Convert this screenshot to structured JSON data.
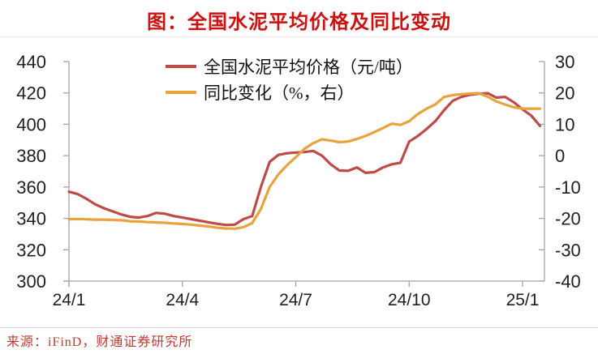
{
  "title": "图：全国水泥平均价格及同比变动",
  "source": "来源：iFinD，财通证券研究所",
  "colors": {
    "title_red": "#cc1111",
    "source_red": "#bf3a30",
    "axis_line": "#a3a3a3",
    "axis_text": "#1f1f1f",
    "price_line": "#be4b48",
    "yoy_line": "#e8a33c"
  },
  "chart_data": {
    "type": "line",
    "title": "图：全国水泥平均价格及同比变动",
    "grid": false,
    "legend_position": "top",
    "x_axis": {
      "tick_labels": [
        "24/1",
        "24/4",
        "24/7",
        "24/10",
        "25/1"
      ],
      "tick_weeks": [
        0,
        13,
        26,
        39,
        52
      ]
    },
    "left_axis": {
      "min": 300,
      "max": 440,
      "ticks": [
        440,
        420,
        400,
        380,
        360,
        340,
        320,
        300
      ]
    },
    "right_axis": {
      "min": -40,
      "max": 30,
      "ticks": [
        30,
        20,
        10,
        0,
        -10,
        -20,
        -30,
        -40
      ]
    },
    "series": [
      {
        "name": "全国水泥平均价格（元/吨）",
        "axis": "left",
        "color": "#be4b48",
        "values": [
          357,
          355.5,
          352.5,
          349,
          346.5,
          344.5,
          342.5,
          341,
          340.5,
          341.5,
          343.5,
          343,
          341.5,
          340.5,
          339.5,
          338.5,
          337.5,
          336.5,
          335.8,
          336,
          339.5,
          341.5,
          360,
          376,
          380.5,
          381.5,
          382,
          382.3,
          383,
          380,
          374.5,
          370.5,
          370.3,
          372.5,
          369,
          369.5,
          372.5,
          374.5,
          375.5,
          389,
          392.5,
          397,
          402,
          409,
          415,
          417.5,
          418.8,
          419.5,
          419.8,
          417,
          417.5,
          414,
          409.5,
          405.5,
          399
        ]
      },
      {
        "name": "同比变化（%，右）",
        "axis": "right",
        "color": "#e8a33c",
        "values": [
          -20.3,
          -20.2,
          -20.3,
          -20.4,
          -20.4,
          -20.5,
          -20.6,
          -20.9,
          -21,
          -21.2,
          -21.3,
          -21.4,
          -21.6,
          -21.8,
          -22,
          -22.3,
          -22.6,
          -23,
          -23.2,
          -23.3,
          -22.8,
          -21.5,
          -17,
          -10,
          -6,
          -3,
          -0.5,
          2.2,
          4,
          5.2,
          4.8,
          4.3,
          4.5,
          5.3,
          6.3,
          7.5,
          8.8,
          10.2,
          9.8,
          11,
          13.3,
          15,
          16.3,
          18.7,
          19.3,
          19.6,
          19.8,
          19.9,
          18.8,
          17.3,
          16.3,
          15.4,
          15,
          15,
          15
        ]
      }
    ]
  }
}
